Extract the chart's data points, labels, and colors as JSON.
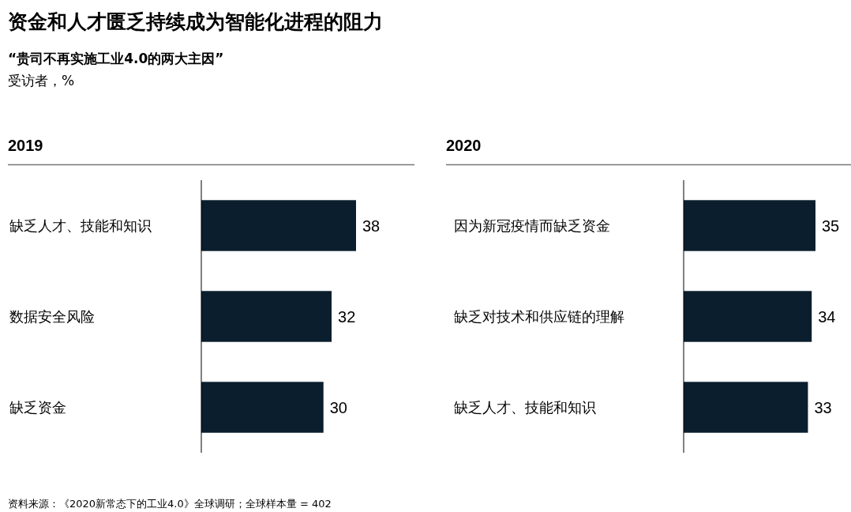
{
  "chart_data": [
    {
      "type": "other",
      "title": "资金和人才匮乏持续成为智能化进程的阻力",
      "subtitle": "“贵司不再实施工业4.0的两大主因”",
      "annotations": [
        "受访者，%",
        "资料来源：《2020新常态下的工业4.0》全球调研；全球样本量 = 402"
      ]
    },
    {
      "type": "bar",
      "orientation": "horizontal",
      "title": "2019",
      "categories": [
        "缺乏人才、技能和知识",
        "数据安全风险",
        "缺乏资金"
      ],
      "values": [
        38,
        32,
        30
      ],
      "color": "#0b1e2d",
      "data_labels": true
    },
    {
      "type": "bar",
      "orientation": "horizontal",
      "title": "2020",
      "categories": [
        "因为新冠疫情而缺乏资金",
        "缺乏对技术和供应链的理解",
        "缺乏人才、技能和知识"
      ],
      "values": [
        35,
        34,
        33
      ],
      "color": "#0b1e2d",
      "data_labels": true
    }
  ]
}
